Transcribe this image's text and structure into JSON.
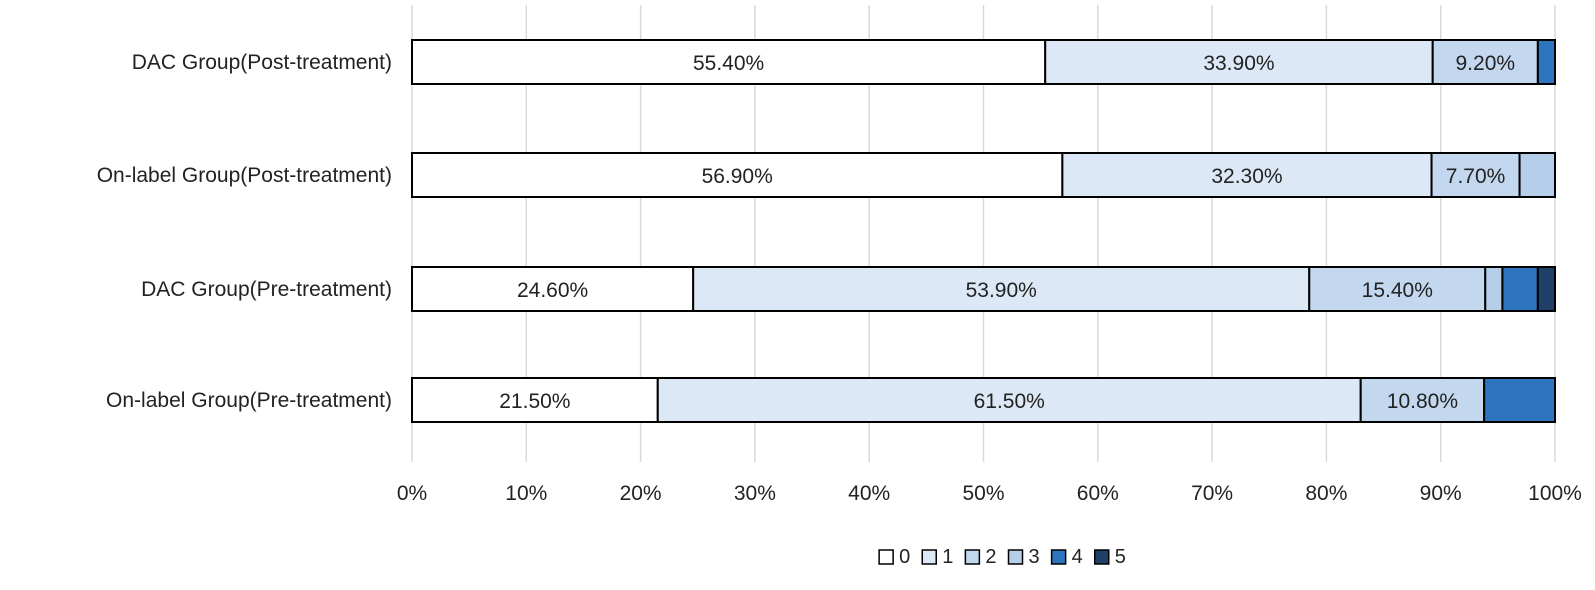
{
  "chart_data": {
    "type": "bar",
    "orientation": "horizontal",
    "stacked": true,
    "normalized_percent": true,
    "categories": [
      "DAC Group(Post-treatment)",
      "On-label Group(Post-treatment)",
      "DAC Group(Pre-treatment)",
      "On-label Group(Pre-treatment)"
    ],
    "series": [
      {
        "name": "0",
        "color": "#ffffff",
        "values": [
          55.4,
          56.9,
          24.6,
          21.5
        ]
      },
      {
        "name": "1",
        "color": "#dde8f6",
        "values": [
          33.9,
          32.3,
          53.9,
          61.5
        ]
      },
      {
        "name": "2",
        "color": "#c3d7ef",
        "values": [
          9.2,
          7.7,
          15.4,
          10.8
        ]
      },
      {
        "name": "3",
        "color": "#b5cfeb",
        "values": [
          0,
          3.1,
          1.5,
          0
        ]
      },
      {
        "name": "4",
        "color": "#2e75c0",
        "values": [
          1.5,
          0,
          3.1,
          6.2
        ]
      },
      {
        "name": "5",
        "color": "#1f3f66",
        "values": [
          0,
          0,
          1.5,
          0
        ]
      }
    ],
    "data_labels": [
      [
        {
          "series": 0,
          "text": "55.40%"
        },
        {
          "series": 1,
          "text": "33.90%"
        },
        {
          "series": 2,
          "text": "9.20%"
        }
      ],
      [
        {
          "series": 0,
          "text": "56.90%"
        },
        {
          "series": 1,
          "text": "32.30%"
        },
        {
          "series": 2,
          "text": "7.70%"
        }
      ],
      [
        {
          "series": 0,
          "text": "24.60%"
        },
        {
          "series": 1,
          "text": "53.90%"
        },
        {
          "series": 2,
          "text": "15.40%"
        }
      ],
      [
        {
          "series": 0,
          "text": "21.50%"
        },
        {
          "series": 1,
          "text": "61.50%"
        },
        {
          "series": 2,
          "text": "10.80%"
        }
      ]
    ],
    "x_ticks": [
      "0%",
      "10%",
      "20%",
      "30%",
      "40%",
      "50%",
      "60%",
      "70%",
      "80%",
      "90%",
      "100%"
    ],
    "xlim": [
      0,
      100
    ],
    "grid": "vertical",
    "legend_position": "bottom",
    "title": "",
    "xlabel": "",
    "ylabel": ""
  }
}
